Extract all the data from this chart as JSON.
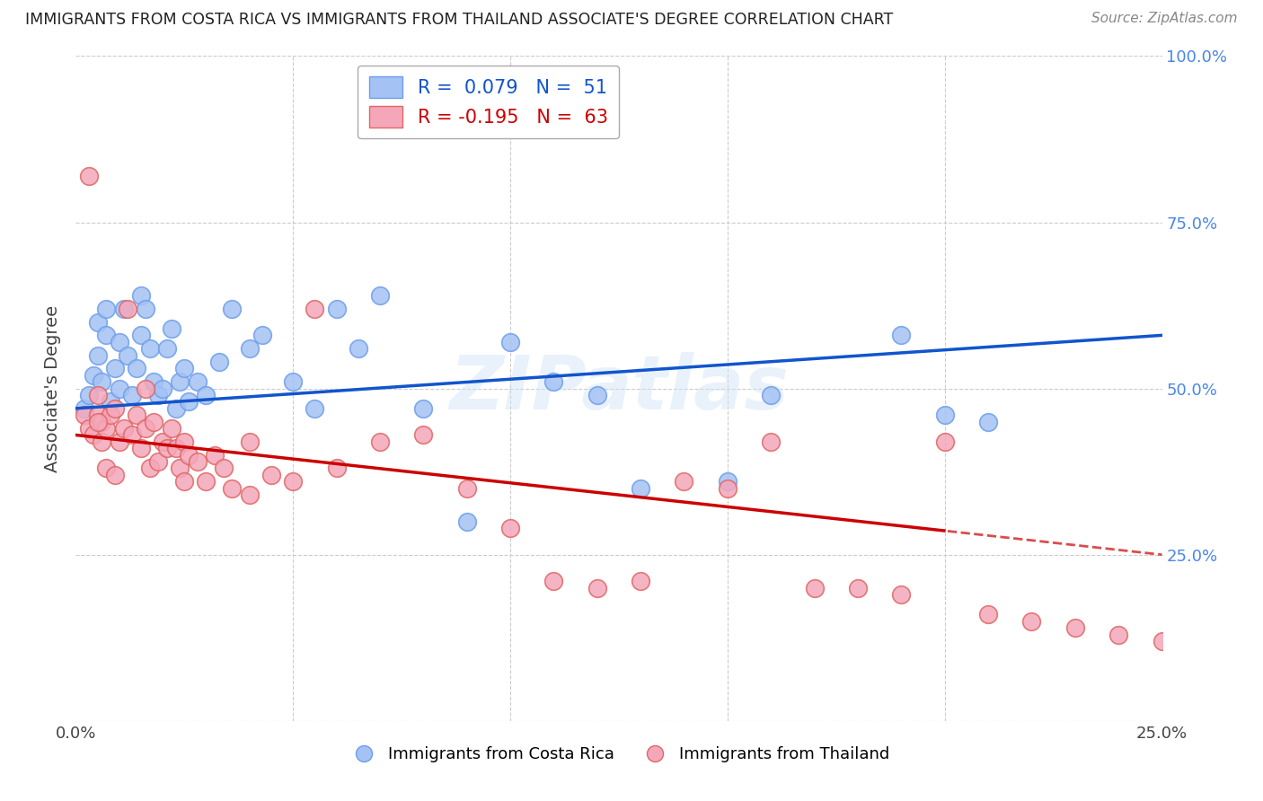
{
  "title": "IMMIGRANTS FROM COSTA RICA VS IMMIGRANTS FROM THAILAND ASSOCIATE'S DEGREE CORRELATION CHART",
  "source": "Source: ZipAtlas.com",
  "ylabel": "Associate's Degree",
  "x_min": 0.0,
  "x_max": 0.25,
  "y_min": 0.0,
  "y_max": 1.0,
  "blue_R": 0.079,
  "blue_N": 51,
  "pink_R": -0.195,
  "pink_N": 63,
  "blue_color": "#a4c2f4",
  "pink_color": "#f4a7b9",
  "blue_edge_color": "#6d9eeb",
  "pink_edge_color": "#e06666",
  "blue_line_color": "#1155cc",
  "pink_line_color": "#cc0000",
  "watermark": "ZIPatlas",
  "blue_x": [
    0.002,
    0.003,
    0.004,
    0.005,
    0.005,
    0.006,
    0.007,
    0.007,
    0.008,
    0.009,
    0.01,
    0.01,
    0.011,
    0.012,
    0.013,
    0.014,
    0.015,
    0.015,
    0.016,
    0.017,
    0.018,
    0.019,
    0.02,
    0.021,
    0.022,
    0.023,
    0.024,
    0.025,
    0.026,
    0.028,
    0.03,
    0.033,
    0.036,
    0.04,
    0.043,
    0.05,
    0.055,
    0.06,
    0.065,
    0.07,
    0.08,
    0.09,
    0.1,
    0.11,
    0.12,
    0.13,
    0.15,
    0.16,
    0.19,
    0.2,
    0.21
  ],
  "blue_y": [
    0.47,
    0.49,
    0.52,
    0.6,
    0.55,
    0.51,
    0.58,
    0.62,
    0.48,
    0.53,
    0.57,
    0.5,
    0.62,
    0.55,
    0.49,
    0.53,
    0.64,
    0.58,
    0.62,
    0.56,
    0.51,
    0.49,
    0.5,
    0.56,
    0.59,
    0.47,
    0.51,
    0.53,
    0.48,
    0.51,
    0.49,
    0.54,
    0.62,
    0.56,
    0.58,
    0.51,
    0.47,
    0.62,
    0.56,
    0.64,
    0.47,
    0.3,
    0.57,
    0.51,
    0.49,
    0.35,
    0.36,
    0.49,
    0.58,
    0.46,
    0.45
  ],
  "pink_x": [
    0.002,
    0.003,
    0.003,
    0.004,
    0.005,
    0.005,
    0.006,
    0.006,
    0.007,
    0.008,
    0.009,
    0.01,
    0.011,
    0.012,
    0.013,
    0.014,
    0.015,
    0.016,
    0.016,
    0.017,
    0.018,
    0.019,
    0.02,
    0.021,
    0.022,
    0.023,
    0.024,
    0.025,
    0.026,
    0.028,
    0.03,
    0.032,
    0.034,
    0.036,
    0.04,
    0.045,
    0.05,
    0.055,
    0.06,
    0.07,
    0.08,
    0.09,
    0.1,
    0.11,
    0.12,
    0.13,
    0.14,
    0.15,
    0.16,
    0.17,
    0.18,
    0.19,
    0.2,
    0.21,
    0.22,
    0.23,
    0.24,
    0.25,
    0.005,
    0.007,
    0.009,
    0.025,
    0.04
  ],
  "pink_y": [
    0.46,
    0.82,
    0.44,
    0.43,
    0.46,
    0.49,
    0.42,
    0.45,
    0.44,
    0.46,
    0.47,
    0.42,
    0.44,
    0.62,
    0.43,
    0.46,
    0.41,
    0.44,
    0.5,
    0.38,
    0.45,
    0.39,
    0.42,
    0.41,
    0.44,
    0.41,
    0.38,
    0.42,
    0.4,
    0.39,
    0.36,
    0.4,
    0.38,
    0.35,
    0.42,
    0.37,
    0.36,
    0.62,
    0.38,
    0.42,
    0.43,
    0.35,
    0.29,
    0.21,
    0.2,
    0.21,
    0.36,
    0.35,
    0.42,
    0.2,
    0.2,
    0.19,
    0.42,
    0.16,
    0.15,
    0.14,
    0.13,
    0.12,
    0.45,
    0.38,
    0.37,
    0.36,
    0.34
  ],
  "grid_color": "#cccccc",
  "background_color": "#ffffff",
  "title_color": "#222222",
  "axis_label_color": "#444444",
  "right_axis_color": "#4a86e8",
  "legend_box_color": "#cccccc",
  "blue_line_intercept": 0.47,
  "blue_line_slope": 0.44,
  "pink_line_intercept": 0.43,
  "pink_line_slope": -0.72
}
